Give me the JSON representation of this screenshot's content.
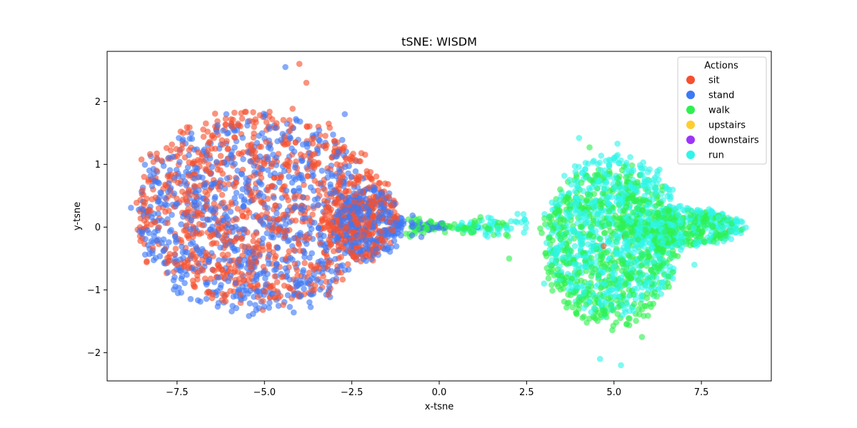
{
  "chart_data": {
    "type": "scatter",
    "title": "tSNE: WISDM",
    "xlabel": "x-tsne",
    "ylabel": "y-tsne",
    "xlim": [
      -9.5,
      9.5
    ],
    "ylim": [
      -2.45,
      2.8
    ],
    "xticks": [
      -7.5,
      -5.0,
      -2.5,
      0.0,
      2.5,
      5.0,
      7.5
    ],
    "xtick_labels": [
      "−7.5",
      "−5.0",
      "−2.5",
      "0.0",
      "2.5",
      "5.0",
      "7.5"
    ],
    "yticks": [
      -2,
      -1,
      0,
      1,
      2
    ],
    "ytick_labels": [
      "−2",
      "−1",
      "0",
      "1",
      "2"
    ],
    "grid": false,
    "legend": {
      "title": "Actions",
      "placement": "top-right"
    },
    "series": [
      {
        "name": "sit",
        "color": "#f5502f",
        "clusters": [
          {
            "cx": -5.2,
            "cy": 0.3,
            "rx": 3.6,
            "ry": 1.6,
            "n": 900
          },
          {
            "cx": -2.2,
            "cy": 0.15,
            "rx": 1.1,
            "ry": 0.7,
            "n": 250
          }
        ],
        "points": [
          [
            -4.0,
            2.6
          ],
          [
            -3.8,
            2.3
          ],
          [
            5.3,
            -0.15
          ],
          [
            8.3,
            -0.05
          ],
          [
            4.7,
            -0.3
          ]
        ]
      },
      {
        "name": "stand",
        "color": "#3d78f5",
        "clusters": [
          {
            "cx": -5.3,
            "cy": 0.2,
            "rx": 3.5,
            "ry": 1.6,
            "n": 850
          },
          {
            "cx": -2.0,
            "cy": 0.05,
            "rx": 1.0,
            "ry": 0.6,
            "n": 250
          }
        ],
        "points": [
          [
            -4.4,
            2.55
          ],
          [
            -2.7,
            1.8
          ],
          [
            -0.1,
            0.0
          ],
          [
            1.1,
            0.0
          ]
        ]
      },
      {
        "name": "walk",
        "color": "#2ef04f",
        "clusters": [
          {
            "cx": 4.9,
            "cy": -0.3,
            "rx": 2.0,
            "ry": 1.3,
            "n": 700
          },
          {
            "cx": 6.8,
            "cy": 0.0,
            "rx": 1.8,
            "ry": 0.3,
            "n": 250
          }
        ],
        "points": [
          [
            -0.8,
            0.0
          ],
          [
            0.3,
            0.0
          ],
          [
            2.0,
            -0.5
          ],
          [
            5.8,
            -1.75
          ],
          [
            4.3,
            1.27
          ]
        ]
      },
      {
        "name": "upstairs",
        "color": "#ffcd2e",
        "clusters": [],
        "points": []
      },
      {
        "name": "downstairs",
        "color": "#9c35f5",
        "clusters": [],
        "points": []
      },
      {
        "name": "run",
        "color": "#2ef5e8",
        "clusters": [
          {
            "cx": 5.0,
            "cy": -0.1,
            "rx": 2.0,
            "ry": 1.3,
            "n": 750
          },
          {
            "cx": 7.0,
            "cy": 0.0,
            "rx": 1.8,
            "ry": 0.3,
            "n": 250
          }
        ],
        "points": [
          [
            4.0,
            1.42
          ],
          [
            5.1,
            1.33
          ],
          [
            5.2,
            -2.2
          ],
          [
            4.6,
            -2.1
          ],
          [
            7.3,
            -0.6
          ],
          [
            3.0,
            -0.9
          ]
        ]
      }
    ],
    "bridge": [
      {
        "series": "walk",
        "x_from": -1.0,
        "x_to": 2.0,
        "n": 80
      },
      {
        "series": "run",
        "x_from": 0.5,
        "x_to": 2.5,
        "n": 60
      },
      {
        "series": "stand",
        "x_from": -1.5,
        "x_to": 0.2,
        "n": 40
      }
    ]
  }
}
